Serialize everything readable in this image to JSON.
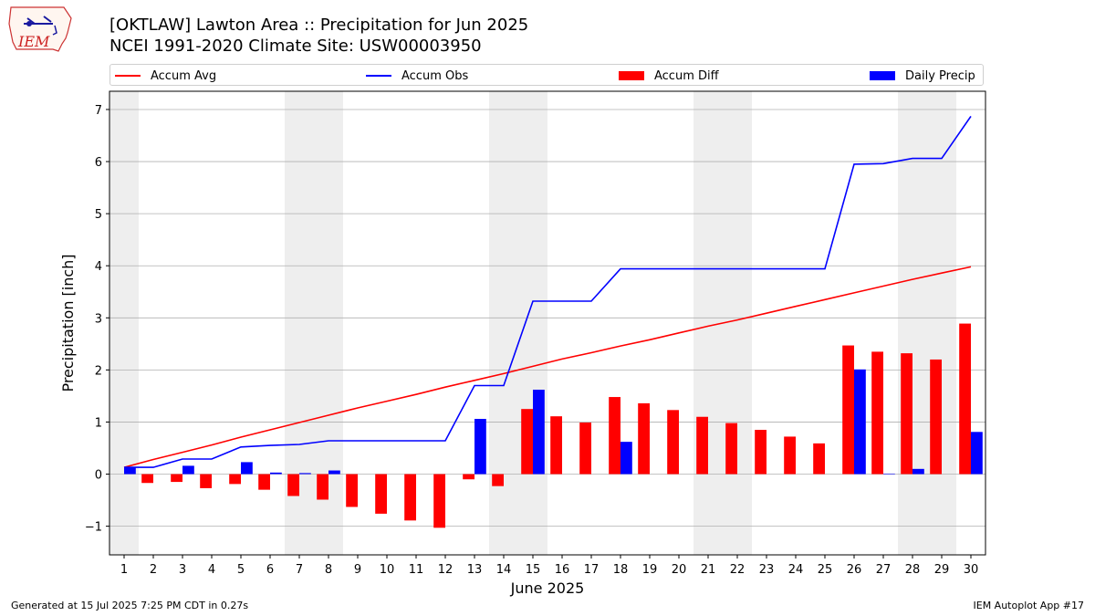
{
  "header": {
    "title_line1": "[OKTLAW] Lawton Area :: Precipitation for Jun 2025",
    "title_line2": "NCEI 1991-2020 Climate Site: USW00003950",
    "logo_text": "IEM"
  },
  "footer": {
    "generated": "Generated at 15 Jul 2025 7:25 PM CDT in 0.27s",
    "app": "IEM Autoplot App #17"
  },
  "colors": {
    "avg": "#ff0000",
    "obs": "#0000ff",
    "diff": "#ff0000",
    "daily": "#0000ff",
    "weekend_shade": "#eeeeee",
    "grid": "#b0b0b0"
  },
  "chart_data": {
    "type": "bar",
    "xlabel": "June 2025",
    "ylabel": "Precipitation [inch]",
    "ylim": [
      -1.55,
      7.35
    ],
    "yticks": [
      -1,
      0,
      1,
      2,
      3,
      4,
      5,
      6,
      7
    ],
    "ytick_labels": [
      "−1",
      "0",
      "1",
      "2",
      "3",
      "4",
      "5",
      "6",
      "7"
    ],
    "xlim": [
      0.5,
      30.5
    ],
    "grid": "horizontal",
    "legend_position": "top",
    "shaded_days": [
      1,
      7,
      8,
      14,
      15,
      21,
      22,
      28,
      29
    ],
    "categories": [
      "1",
      "2",
      "3",
      "4",
      "5",
      "6",
      "7",
      "8",
      "9",
      "10",
      "11",
      "12",
      "13",
      "14",
      "15",
      "16",
      "17",
      "18",
      "19",
      "20",
      "21",
      "22",
      "23",
      "24",
      "25",
      "26",
      "27",
      "28",
      "29",
      "30"
    ],
    "series": [
      {
        "name": "Accum Avg",
        "kind": "line",
        "values": [
          0.13,
          0.28,
          0.42,
          0.56,
          0.71,
          0.85,
          0.99,
          1.13,
          1.27,
          1.4,
          1.53,
          1.67,
          1.8,
          1.93,
          2.07,
          2.21,
          2.33,
          2.46,
          2.58,
          2.71,
          2.84,
          2.96,
          3.09,
          3.22,
          3.35,
          3.48,
          3.61,
          3.74,
          3.86,
          3.98
        ]
      },
      {
        "name": "Accum Obs",
        "kind": "line",
        "values": [
          0.13,
          0.13,
          0.29,
          0.29,
          0.52,
          0.55,
          0.57,
          0.64,
          0.64,
          0.64,
          0.64,
          0.64,
          1.7,
          1.7,
          3.32,
          3.32,
          3.32,
          3.94,
          3.94,
          3.94,
          3.94,
          3.94,
          3.94,
          3.94,
          3.94,
          5.95,
          5.96,
          6.06,
          6.06,
          6.87
        ]
      },
      {
        "name": "Accum Diff",
        "kind": "bar",
        "values": [
          0.0,
          -0.17,
          -0.15,
          -0.27,
          -0.19,
          -0.3,
          -0.42,
          -0.49,
          -0.63,
          -0.76,
          -0.89,
          -1.03,
          -0.1,
          -0.23,
          1.25,
          1.11,
          0.99,
          1.48,
          1.36,
          1.23,
          1.1,
          0.98,
          0.85,
          0.72,
          0.59,
          2.47,
          2.35,
          2.32,
          2.2,
          2.89
        ]
      },
      {
        "name": "Daily Precip",
        "kind": "bar",
        "values": [
          0.13,
          0.0,
          0.16,
          0.0,
          0.23,
          0.03,
          0.02,
          0.07,
          0.0,
          0.0,
          0.0,
          0.0,
          1.06,
          0.0,
          1.62,
          0.0,
          0.0,
          0.62,
          0.0,
          0.0,
          0.0,
          0.0,
          0.0,
          0.0,
          0.0,
          2.01,
          0.01,
          0.1,
          0.0,
          0.81
        ]
      }
    ]
  }
}
